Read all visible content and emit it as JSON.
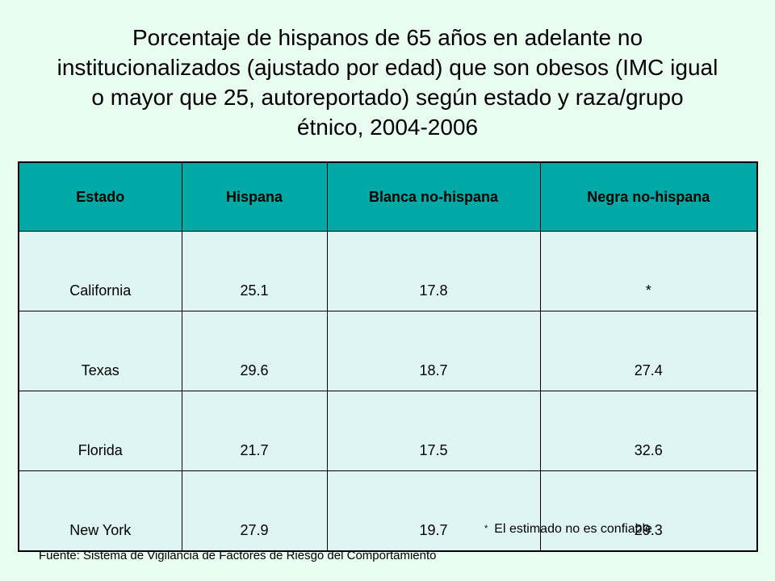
{
  "title_lines": [
    "Porcentaje de hispanos de 65 años en adelante no",
    "institucionalizados (ajustado por edad) que son obesos (IMC igual",
    "o mayor que 25, autoreportado) según estado y raza/grupo",
    "étnico, 2004-2006"
  ],
  "table": {
    "headers": [
      "Estado",
      "Hispana",
      "Blanca no-hispana",
      "Negra no-hispana"
    ],
    "rows": [
      [
        "California",
        "25.1",
        "17.8",
        "*"
      ],
      [
        "Texas",
        "29.6",
        "18.7",
        "27.4"
      ],
      [
        "Florida",
        "21.7",
        "17.5",
        "32.6"
      ],
      [
        "New York",
        "27.9",
        "19.7",
        "29.3"
      ]
    ]
  },
  "footnote": {
    "marker": "*",
    "text": "El estimado no es confiable"
  },
  "source": "Fuente: Sistema de Vigilancia de Factores de Riesgo del Comportamiento",
  "colors": {
    "background": "#e8fcf0",
    "header_fill": "#00a9a6",
    "cell_fill": "#def5f4"
  }
}
